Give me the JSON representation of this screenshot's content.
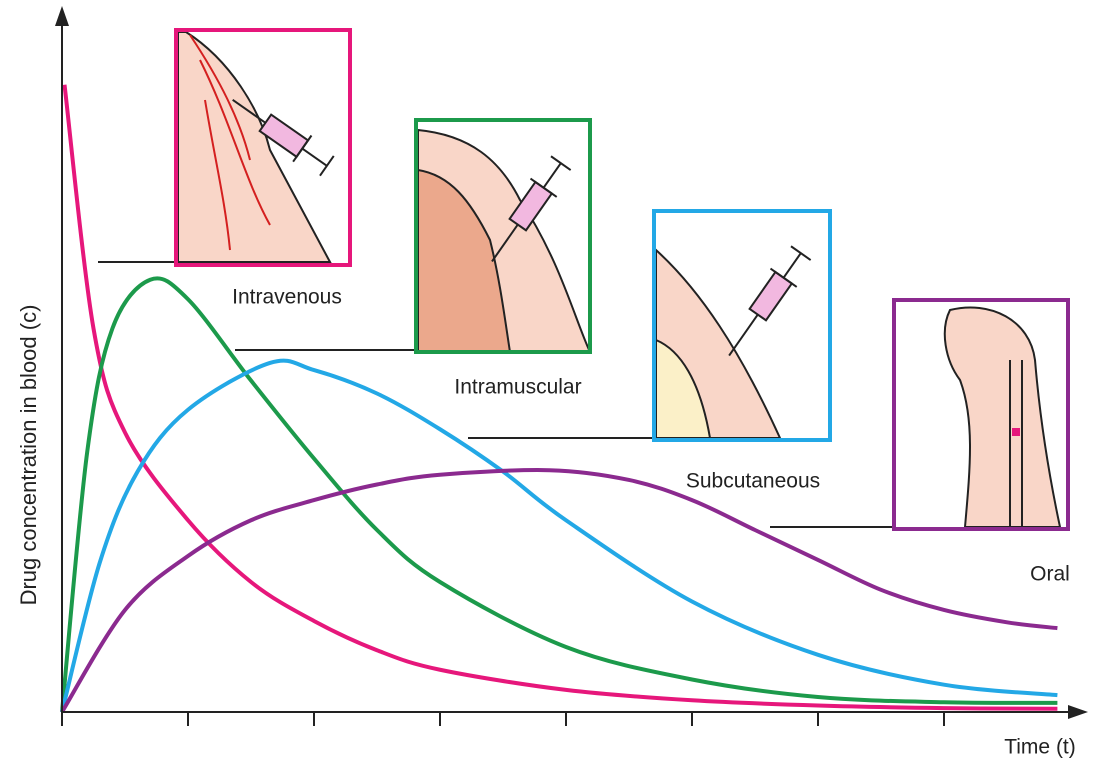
{
  "chart_data": {
    "type": "line",
    "y_label": "Drug concentration in blood (c)",
    "x_label": "Time (t)",
    "xlim": [
      0,
      8
    ],
    "ylim": [
      0,
      10
    ],
    "xticks": [
      0,
      1,
      2,
      3,
      4,
      5,
      6,
      7
    ],
    "series": [
      {
        "name": "Intravenous",
        "color": "#e6177b",
        "x": [
          0.02,
          0.25,
          0.5,
          1,
          1.5,
          2,
          2.5,
          3,
          4,
          5,
          6,
          7,
          7.9
        ],
        "values": [
          9.65,
          5.9,
          4.3,
          2.95,
          2.0,
          1.4,
          0.95,
          0.65,
          0.34,
          0.18,
          0.1,
          0.06,
          0.05
        ]
      },
      {
        "name": "Intramuscular",
        "color": "#1c9a4b",
        "x": [
          0,
          0.2,
          0.4,
          0.7,
          1,
          1.5,
          2,
          2.5,
          3,
          4,
          5,
          6,
          7,
          7.9
        ],
        "values": [
          0,
          4.0,
          5.9,
          6.65,
          6.35,
          5.1,
          3.9,
          2.8,
          2.0,
          1.0,
          0.5,
          0.23,
          0.15,
          0.14
        ]
      },
      {
        "name": "Subcutaneous",
        "color": "#23a8e6",
        "x": [
          0,
          0.3,
          0.6,
          1,
          1.65,
          2,
          2.5,
          3,
          3.5,
          4,
          5,
          6,
          7,
          7.9
        ],
        "values": [
          0,
          2.3,
          3.7,
          4.65,
          5.37,
          5.26,
          4.9,
          4.35,
          3.7,
          2.95,
          1.7,
          0.88,
          0.42,
          0.26
        ]
      },
      {
        "name": "Oral",
        "color": "#8b2a8f",
        "x": [
          0,
          0.5,
          1,
          1.5,
          2,
          2.5,
          3,
          3.87,
          4.5,
          5,
          5.5,
          6,
          6.5,
          7,
          7.5,
          7.9
        ],
        "values": [
          0,
          1.57,
          2.4,
          2.95,
          3.26,
          3.5,
          3.65,
          3.72,
          3.57,
          3.26,
          2.8,
          2.34,
          1.88,
          1.57,
          1.38,
          1.29
        ]
      }
    ]
  }
}
